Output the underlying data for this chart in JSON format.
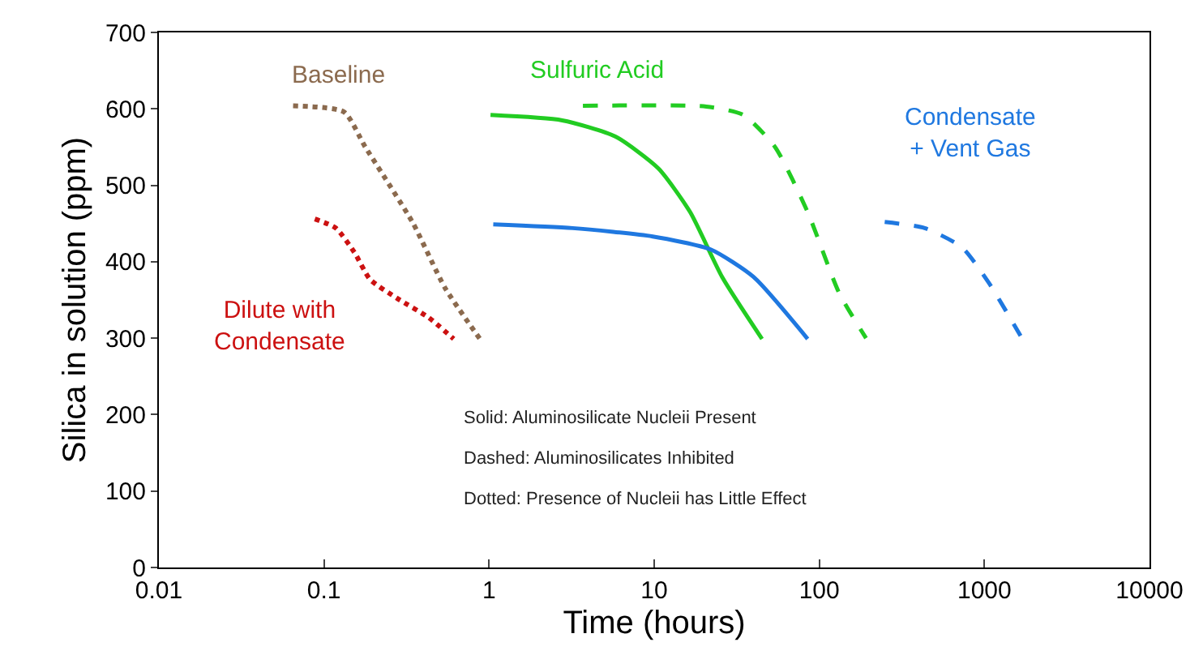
{
  "chart_data": {
    "type": "line",
    "xlabel": "Time (hours)",
    "ylabel": "Silica in solution (ppm)",
    "log": "x",
    "xlim": [
      0.01,
      10000
    ],
    "xticks": [
      0.01,
      0.1,
      1,
      10,
      100,
      1000,
      10000
    ],
    "ylim": [
      0,
      700
    ],
    "yticks": [
      0,
      100,
      200,
      300,
      400,
      500,
      600,
      700
    ],
    "legend": false,
    "series": [
      {
        "name": "Baseline",
        "color": "#8b6a4e",
        "line_style": "dotted",
        "x": [
          0.065,
          0.132,
          0.178,
          0.345,
          0.54,
          0.88
        ],
        "values": [
          604,
          596,
          550,
          451,
          366,
          299
        ]
      },
      {
        "name": "Dilute with\nCondensate",
        "color": "#cc1111",
        "line_style": "dotted",
        "x": [
          0.088,
          0.118,
          0.153,
          0.19,
          0.278,
          0.43,
          0.61
        ],
        "values": [
          456,
          444,
          412,
          377,
          352,
          327,
          299
        ]
      },
      {
        "color": "#22cc22",
        "line_style": "solid",
        "x": [
          1.02,
          2.77,
          5.8,
          10.6,
          16.5,
          25.8,
          45
        ],
        "values": [
          592,
          585,
          564,
          522,
          465,
          380,
          299
        ]
      },
      {
        "name": "Sulfuric Acid",
        "color": "#22cc22",
        "line_style": "dashed",
        "x": [
          3.7,
          20.7,
          34.7,
          54,
          85,
          132,
          192
        ],
        "values": [
          604,
          603,
          592,
          550,
          465,
          359,
          300
        ]
      },
      {
        "color": "#1f78e0",
        "line_style": "solid",
        "x": [
          1.06,
          3.2,
          9.8,
          22,
          40,
          85
        ],
        "values": [
          449,
          444,
          433,
          416,
          380,
          299
        ]
      },
      {
        "name": "Condensate\n+ Vent Gas",
        "color": "#1f78e0",
        "line_style": "dashed",
        "x": [
          249,
          435,
          730,
          1060,
          1656
        ],
        "values": [
          452,
          444,
          419,
          373,
          303
        ]
      }
    ],
    "annotations": [
      "Solid: Aluminosilicate Nucleii Present",
      "Dashed: Aluminosilicates Inhibited",
      "Dotted: Presence of Nucleii has Little Effect"
    ]
  }
}
